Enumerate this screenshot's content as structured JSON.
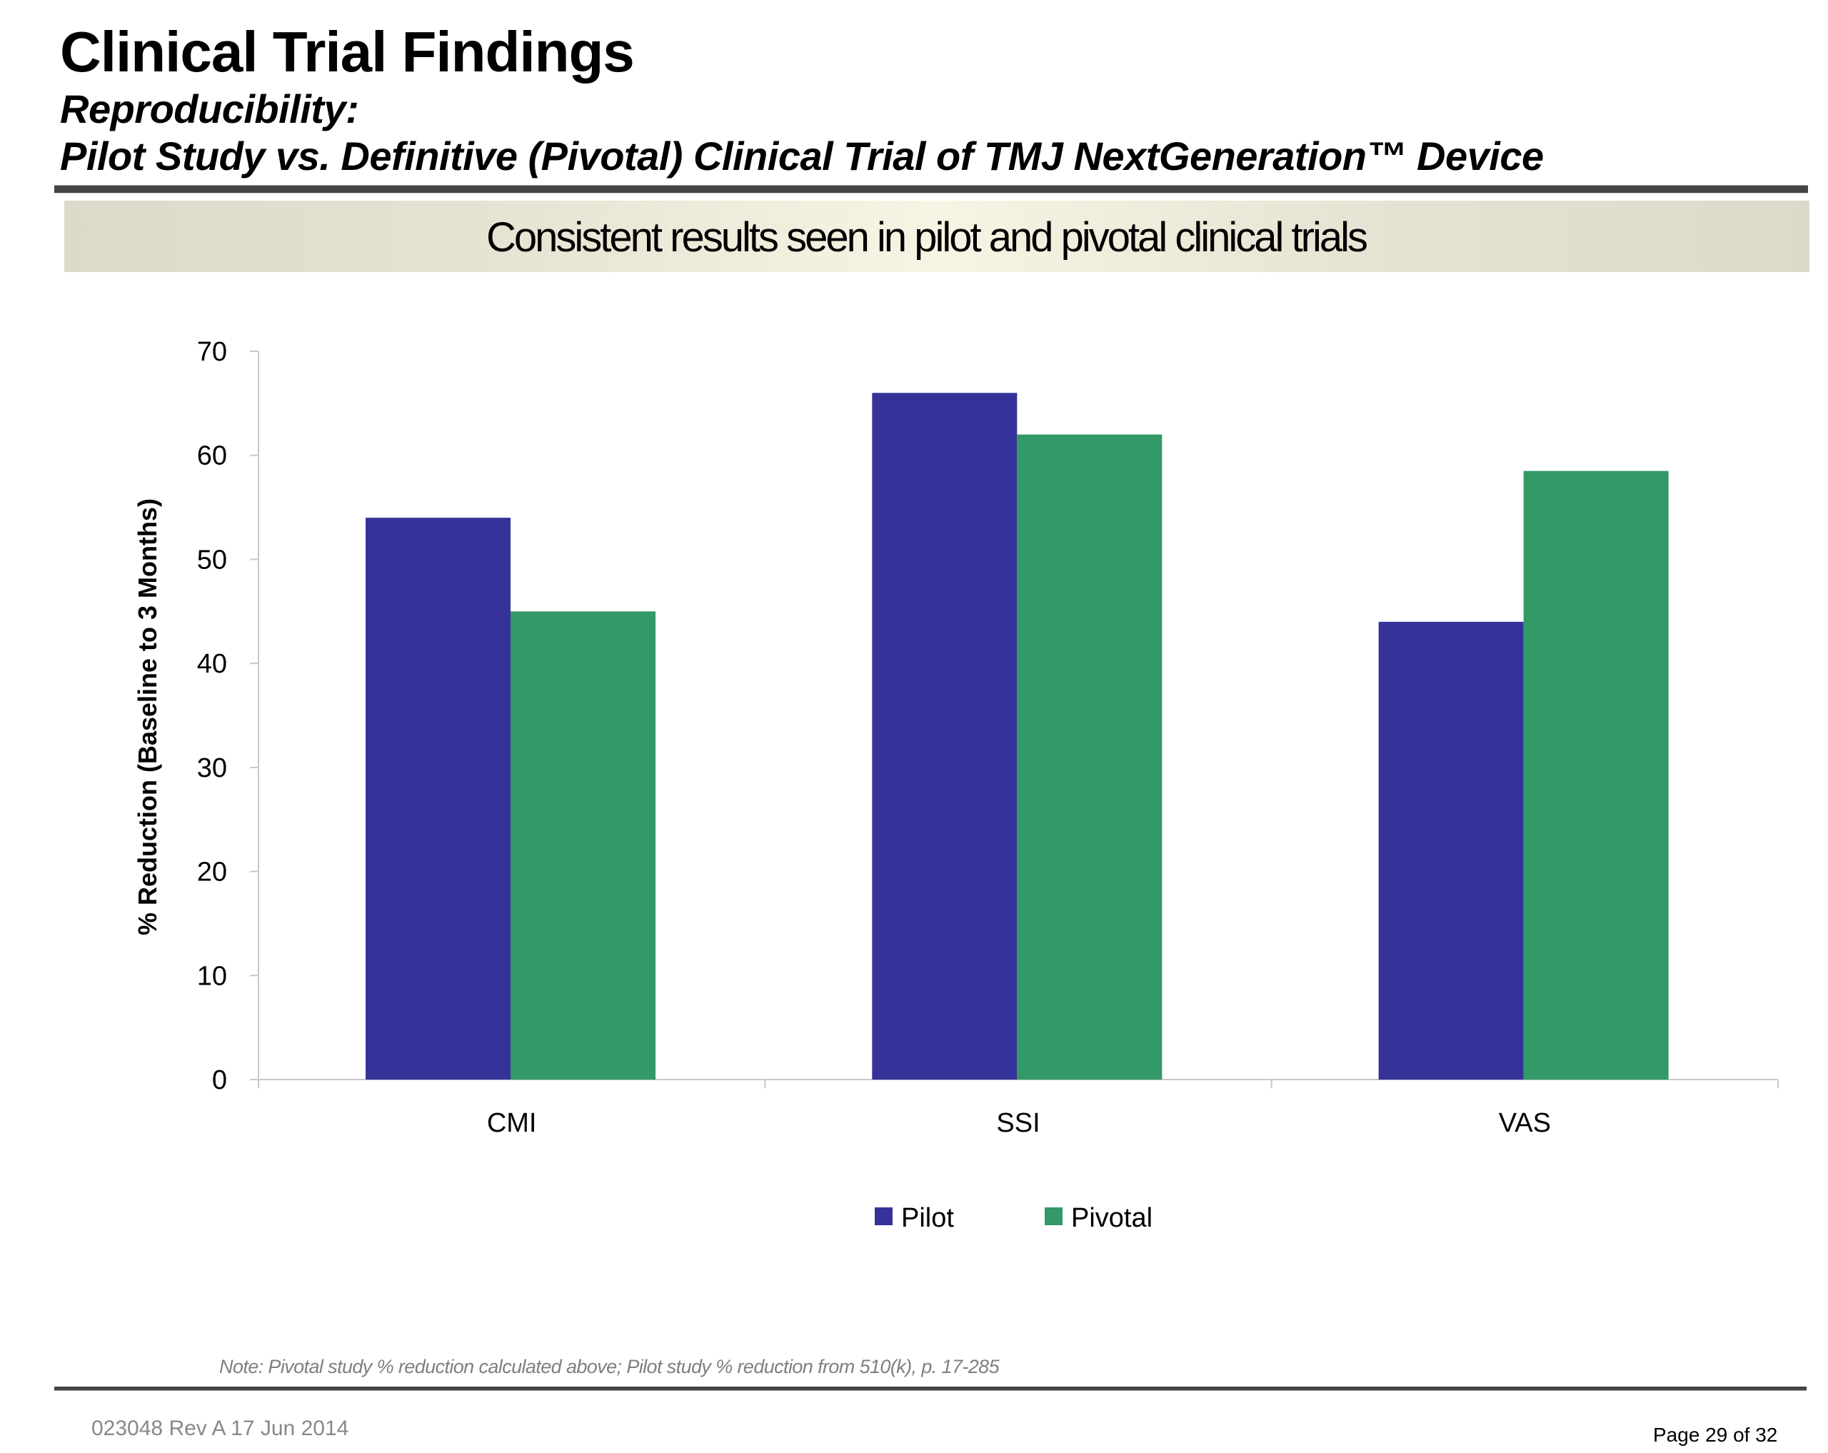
{
  "header": {
    "title": "Clinical Trial Findings",
    "subtitle_line1": "Reproducibility:",
    "subtitle_line2": "Pilot Study vs. Definitive (Pivotal) Clinical Trial of TMJ NextGeneration™ Device"
  },
  "banner": {
    "text": "Consistent results seen in pilot and pivotal clinical trials"
  },
  "chart_data": {
    "type": "bar",
    "title": "",
    "xlabel": "",
    "ylabel": "% Reduction (Baseline to 3 Months)",
    "categories": [
      "CMI",
      "SSI",
      "VAS"
    ],
    "series": [
      {
        "name": "Pilot",
        "color": "#353399",
        "values": [
          54,
          66,
          44
        ]
      },
      {
        "name": "Pivotal",
        "color": "#339966",
        "values": [
          45,
          62,
          58.5
        ]
      }
    ],
    "ylim": [
      0,
      70
    ],
    "yticks": [
      0,
      10,
      20,
      30,
      40,
      50,
      60,
      70
    ],
    "grid": false,
    "legend": "bottom-center"
  },
  "footer": {
    "note": "Note: Pivotal study % reduction calculated above; Pilot study % reduction from 510(k), p. 17-285",
    "doc_id": "023048 Rev A 17 Jun 2014",
    "page": "Page 29 of 32"
  }
}
